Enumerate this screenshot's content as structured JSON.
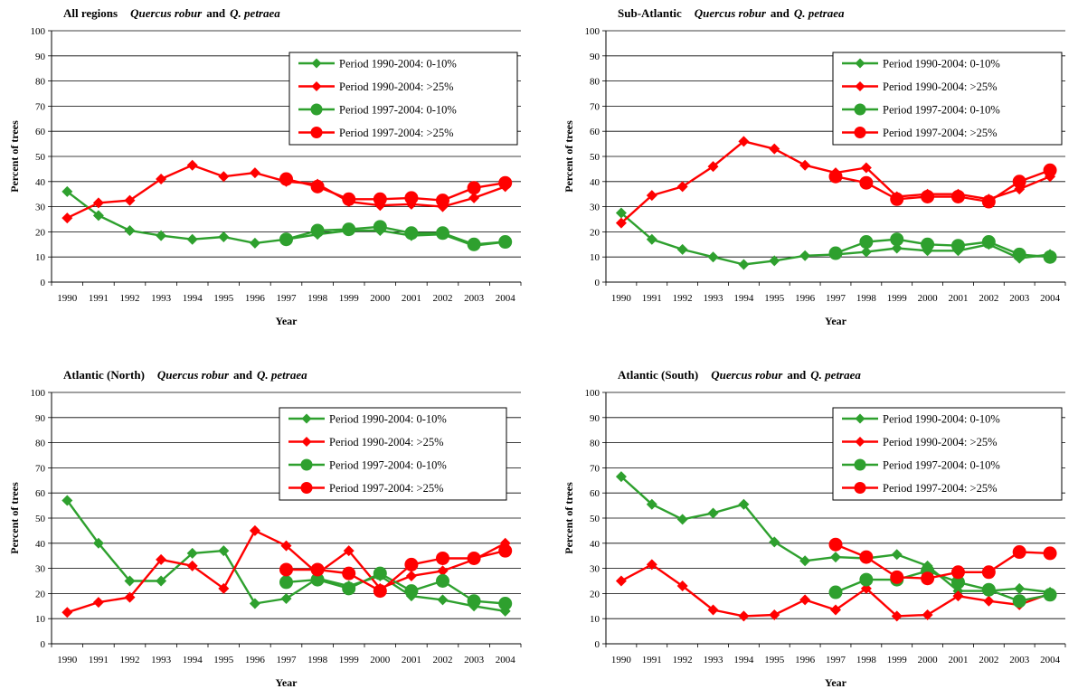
{
  "legend_labels": [
    "Period 1990-2004:  0-10%",
    "Period 1990-2004:  >25%",
    "Period 1997-2004: 0-10%",
    "Period 1997-2004:  >25%"
  ],
  "colors": {
    "green": "#2ea02e",
    "red": "#ff0000",
    "grid": "#000000"
  },
  "chart_data": [
    {
      "type": "line",
      "title": "All regions",
      "title_species": "Quercus robur",
      "title_and": "and",
      "title_species2": "Q. petraea",
      "xlabel": "Year",
      "ylabel": "Percent of trees",
      "ylim": [
        0,
        100
      ],
      "yticks": [
        0,
        10,
        20,
        30,
        40,
        50,
        60,
        70,
        80,
        90,
        100
      ],
      "grid": true,
      "legend_position": "top-right",
      "x": [
        1990,
        1991,
        1992,
        1993,
        1994,
        1995,
        1996,
        1997,
        1998,
        1999,
        2000,
        2001,
        2002,
        2003,
        2004
      ],
      "series": [
        {
          "name": "Period 1990-2004:  0-10%",
          "color": "green",
          "marker": "diamond",
          "x": [
            1990,
            1991,
            1992,
            1993,
            1994,
            1995,
            1996,
            1997,
            1998,
            1999,
            2000,
            2001,
            2002,
            2003,
            2004
          ],
          "values": [
            36,
            26.5,
            20.5,
            18.5,
            17,
            18,
            15.5,
            17,
            19,
            20.5,
            20.5,
            18.5,
            19,
            14.5,
            16
          ]
        },
        {
          "name": "Period 1990-2004:  >25%",
          "color": "red",
          "marker": "diamond",
          "x": [
            1990,
            1991,
            1992,
            1993,
            1994,
            1995,
            1996,
            1997,
            1998,
            1999,
            2000,
            2001,
            2002,
            2003,
            2004
          ],
          "values": [
            25.5,
            31.5,
            32.5,
            41,
            46.5,
            42,
            43.5,
            40,
            39,
            32,
            30.5,
            31,
            30,
            33.5,
            38
          ]
        },
        {
          "name": "Period 1997-2004: 0-10%",
          "color": "green",
          "marker": "circle",
          "x": [
            1997,
            1998,
            1999,
            2000,
            2001,
            2002,
            2003,
            2004
          ],
          "values": [
            17,
            20.5,
            21,
            22,
            19.5,
            19.5,
            15,
            16
          ]
        },
        {
          "name": "Period 1997-2004:  >25%",
          "color": "red",
          "marker": "circle",
          "x": [
            1997,
            1998,
            1999,
            2000,
            2001,
            2002,
            2003,
            2004
          ],
          "values": [
            41,
            38,
            33,
            33,
            33.5,
            32.5,
            37.5,
            39.5
          ]
        }
      ]
    },
    {
      "type": "line",
      "title": "Sub-Atlantic",
      "title_species": "Quercus robur",
      "title_and": "and",
      "title_species2": "Q. petraea",
      "xlabel": "Year",
      "ylabel": "Percent of trees",
      "ylim": [
        0,
        100
      ],
      "yticks": [
        0,
        10,
        20,
        30,
        40,
        50,
        60,
        70,
        80,
        90,
        100
      ],
      "grid": true,
      "legend_position": "top-right",
      "x": [
        1990,
        1991,
        1992,
        1993,
        1994,
        1995,
        1996,
        1997,
        1998,
        1999,
        2000,
        2001,
        2002,
        2003,
        2004
      ],
      "series": [
        {
          "name": "Period 1990-2004:  0-10%",
          "color": "green",
          "marker": "diamond",
          "x": [
            1990,
            1991,
            1992,
            1993,
            1994,
            1995,
            1996,
            1997,
            1998,
            1999,
            2000,
            2001,
            2002,
            2003,
            2004
          ],
          "values": [
            27.5,
            17,
            13,
            10,
            7,
            8.5,
            10.5,
            11,
            12,
            13.5,
            12.5,
            12.5,
            15,
            9.5,
            11
          ]
        },
        {
          "name": "Period 1990-2004:  >25%",
          "color": "red",
          "marker": "diamond",
          "x": [
            1990,
            1991,
            1992,
            1993,
            1994,
            1995,
            1996,
            1997,
            1998,
            1999,
            2000,
            2001,
            2002,
            2003,
            2004
          ],
          "values": [
            23.5,
            34.5,
            38,
            46,
            56,
            53,
            46.5,
            43.5,
            45.5,
            34,
            35,
            35,
            33,
            37,
            42
          ]
        },
        {
          "name": "Period 1997-2004: 0-10%",
          "color": "green",
          "marker": "circle",
          "x": [
            1997,
            1998,
            1999,
            2000,
            2001,
            2002,
            2003,
            2004
          ],
          "values": [
            11.5,
            16,
            17,
            15,
            14.5,
            16,
            11,
            10
          ]
        },
        {
          "name": "Period 1997-2004:  >25%",
          "color": "red",
          "marker": "circle",
          "x": [
            1997,
            1998,
            1999,
            2000,
            2001,
            2002,
            2003,
            2004
          ],
          "values": [
            42,
            39.5,
            33,
            34,
            34,
            32,
            40,
            44.5
          ]
        }
      ]
    },
    {
      "type": "line",
      "title": "Atlantic (North)",
      "title_species": "Quercus robur",
      "title_and": "and",
      "title_species2": "Q. petraea",
      "xlabel": "Year",
      "ylabel": "Percent of trees",
      "ylim": [
        0,
        100
      ],
      "yticks": [
        0,
        10,
        20,
        30,
        40,
        50,
        60,
        70,
        80,
        90,
        100
      ],
      "grid": true,
      "legend_position": "top-right",
      "x": [
        1990,
        1991,
        1992,
        1993,
        1994,
        1995,
        1996,
        1997,
        1998,
        1999,
        2000,
        2001,
        2002,
        2003,
        2004
      ],
      "series": [
        {
          "name": "Period 1990-2004:  0-10%",
          "color": "green",
          "marker": "diamond",
          "x": [
            1990,
            1991,
            1992,
            1993,
            1994,
            1995,
            1996,
            1997,
            1998,
            1999,
            2000,
            2001,
            2002,
            2003,
            2004
          ],
          "values": [
            57,
            40,
            25,
            25,
            36,
            37,
            16,
            18,
            26,
            23,
            27,
            19,
            17.5,
            15,
            13
          ]
        },
        {
          "name": "Period 1990-2004:  >25%",
          "color": "red",
          "marker": "diamond",
          "x": [
            1990,
            1991,
            1992,
            1993,
            1994,
            1995,
            1996,
            1997,
            1998,
            1999,
            2000,
            2001,
            2002,
            2003,
            2004
          ],
          "values": [
            12.5,
            16.5,
            18.5,
            33.5,
            31,
            22,
            45,
            39,
            28,
            37,
            22,
            27,
            29,
            33.5,
            40
          ]
        },
        {
          "name": "Period 1997-2004: 0-10%",
          "color": "green",
          "marker": "circle",
          "x": [
            1997,
            1998,
            1999,
            2000,
            2001,
            2002,
            2003,
            2004
          ],
          "values": [
            24.5,
            25.5,
            22,
            28,
            21,
            25,
            17,
            16
          ]
        },
        {
          "name": "Period 1997-2004:  >25%",
          "color": "red",
          "marker": "circle",
          "x": [
            1997,
            1998,
            1999,
            2000,
            2001,
            2002,
            2003,
            2004
          ],
          "values": [
            29.5,
            29.5,
            28,
            21,
            31.5,
            34,
            34,
            37
          ]
        }
      ]
    },
    {
      "type": "line",
      "title": "Atlantic (South)",
      "title_species": "Quercus robur",
      "title_and": "and",
      "title_species2": "Q. petraea",
      "xlabel": "Year",
      "ylabel": "Percent of trees",
      "ylim": [
        0,
        100
      ],
      "yticks": [
        0,
        10,
        20,
        30,
        40,
        50,
        60,
        70,
        80,
        90,
        100
      ],
      "grid": true,
      "legend_position": "top-right",
      "x": [
        1990,
        1991,
        1992,
        1993,
        1994,
        1995,
        1996,
        1997,
        1998,
        1999,
        2000,
        2001,
        2002,
        2003,
        2004
      ],
      "series": [
        {
          "name": "Period 1990-2004:  0-10%",
          "color": "green",
          "marker": "diamond",
          "x": [
            1990,
            1991,
            1992,
            1993,
            1994,
            1995,
            1996,
            1997,
            1998,
            1999,
            2000,
            2001,
            2002,
            2003,
            2004
          ],
          "values": [
            66.5,
            55.5,
            49.5,
            52,
            55.5,
            40.5,
            33,
            34.5,
            34,
            35.5,
            31,
            21,
            21,
            22,
            20.5
          ]
        },
        {
          "name": "Period 1990-2004:  >25%",
          "color": "red",
          "marker": "diamond",
          "x": [
            1990,
            1991,
            1992,
            1993,
            1994,
            1995,
            1996,
            1997,
            1998,
            1999,
            2000,
            2001,
            2002,
            2003,
            2004
          ],
          "values": [
            25,
            31.5,
            23,
            13.5,
            11,
            11.5,
            17.5,
            13.5,
            22,
            11,
            11.5,
            19,
            17,
            15.5,
            20
          ]
        },
        {
          "name": "Period 1997-2004: 0-10%",
          "color": "green",
          "marker": "circle",
          "x": [
            1997,
            1998,
            1999,
            2000,
            2001,
            2002,
            2003,
            2004
          ],
          "values": [
            20.5,
            25.5,
            25.5,
            29,
            24.5,
            21.5,
            17,
            19.5
          ]
        },
        {
          "name": "Period 1997-2004:  >25%",
          "color": "red",
          "marker": "circle",
          "x": [
            1997,
            1998,
            1999,
            2000,
            2001,
            2002,
            2003,
            2004
          ],
          "values": [
            39.5,
            34.5,
            26.5,
            26,
            28.5,
            28.5,
            36.5,
            36
          ]
        }
      ]
    }
  ]
}
